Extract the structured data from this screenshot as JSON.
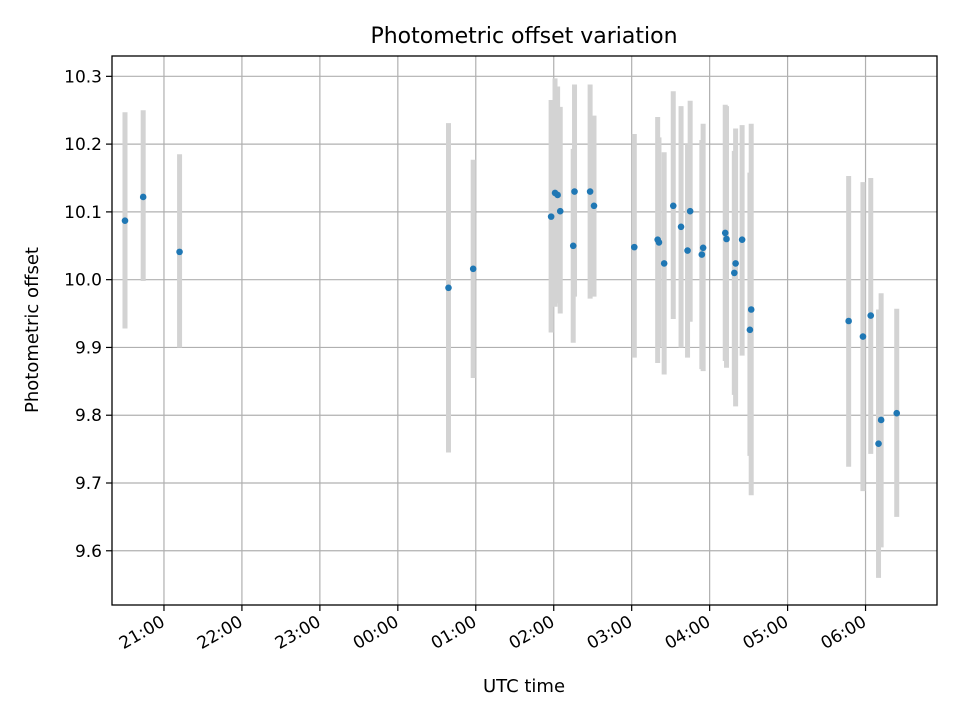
{
  "chart_data": {
    "type": "scatter",
    "title": "Photometric offset variation",
    "xlabel": "UTC time",
    "ylabel": "Photometric offset",
    "grid": true,
    "x_axis": {
      "kind": "time",
      "range": [
        "20:20",
        "06:55"
      ],
      "ticks": [
        "21:00",
        "22:00",
        "23:00",
        "00:00",
        "01:00",
        "02:00",
        "03:00",
        "04:00",
        "05:00",
        "06:00"
      ]
    },
    "y_axis": {
      "range": [
        9.52,
        10.33
      ],
      "ticks": [
        9.6,
        9.7,
        9.8,
        9.9,
        10.0,
        10.1,
        10.2,
        10.3
      ]
    },
    "colors": {
      "point": "#1f77b4",
      "errorbar": "#d3d3d3"
    },
    "points": [
      {
        "t": "20:30",
        "y": 10.087,
        "lo": 9.928,
        "hi": 10.247
      },
      {
        "t": "20:44",
        "y": 10.122,
        "lo": 9.998,
        "hi": 10.25
      },
      {
        "t": "21:12",
        "y": 10.041,
        "lo": 9.9,
        "hi": 10.185
      },
      {
        "t": "00:39",
        "y": 9.988,
        "lo": 9.745,
        "hi": 10.231
      },
      {
        "t": "00:58",
        "y": 10.016,
        "lo": 9.855,
        "hi": 10.177
      },
      {
        "t": "01:58",
        "y": 10.093,
        "lo": 9.922,
        "hi": 10.265
      },
      {
        "t": "02:01",
        "y": 10.128,
        "lo": 9.96,
        "hi": 10.297
      },
      {
        "t": "02:03",
        "y": 10.125,
        "lo": 9.965,
        "hi": 10.285
      },
      {
        "t": "02:05",
        "y": 10.101,
        "lo": 9.95,
        "hi": 10.255
      },
      {
        "t": "02:15",
        "y": 10.05,
        "lo": 9.907,
        "hi": 10.193
      },
      {
        "t": "02:16",
        "y": 10.13,
        "lo": 9.975,
        "hi": 10.288
      },
      {
        "t": "02:28",
        "y": 10.13,
        "lo": 9.972,
        "hi": 10.288
      },
      {
        "t": "02:31",
        "y": 10.109,
        "lo": 9.975,
        "hi": 10.242
      },
      {
        "t": "03:02",
        "y": 10.048,
        "lo": 9.885,
        "hi": 10.215
      },
      {
        "t": "03:20",
        "y": 10.059,
        "lo": 9.877,
        "hi": 10.24
      },
      {
        "t": "03:21",
        "y": 10.055,
        "lo": 9.9,
        "hi": 10.21
      },
      {
        "t": "03:25",
        "y": 10.024,
        "lo": 9.86,
        "hi": 10.188
      },
      {
        "t": "03:32",
        "y": 10.109,
        "lo": 9.942,
        "hi": 10.278
      },
      {
        "t": "03:38",
        "y": 10.078,
        "lo": 9.9,
        "hi": 10.256
      },
      {
        "t": "03:43",
        "y": 10.043,
        "lo": 9.885,
        "hi": 10.2
      },
      {
        "t": "03:45",
        "y": 10.101,
        "lo": 9.938,
        "hi": 10.264
      },
      {
        "t": "03:54",
        "y": 10.037,
        "lo": 9.868,
        "hi": 10.206
      },
      {
        "t": "03:55",
        "y": 10.047,
        "lo": 9.865,
        "hi": 10.23
      },
      {
        "t": "04:12",
        "y": 10.069,
        "lo": 9.88,
        "hi": 10.258
      },
      {
        "t": "04:13",
        "y": 10.06,
        "lo": 9.87,
        "hi": 10.256
      },
      {
        "t": "04:19",
        "y": 10.01,
        "lo": 9.83,
        "hi": 10.19
      },
      {
        "t": "04:20",
        "y": 10.024,
        "lo": 9.813,
        "hi": 10.223
      },
      {
        "t": "04:25",
        "y": 10.059,
        "lo": 9.888,
        "hi": 10.228
      },
      {
        "t": "04:31",
        "y": 9.926,
        "lo": 9.74,
        "hi": 10.158
      },
      {
        "t": "04:32",
        "y": 9.956,
        "lo": 9.682,
        "hi": 10.23
      },
      {
        "t": "05:47",
        "y": 9.939,
        "lo": 9.724,
        "hi": 10.153
      },
      {
        "t": "05:58",
        "y": 9.916,
        "lo": 9.688,
        "hi": 10.144
      },
      {
        "t": "06:04",
        "y": 9.947,
        "lo": 9.743,
        "hi": 10.15
      },
      {
        "t": "06:10",
        "y": 9.758,
        "lo": 9.56,
        "hi": 9.956
      },
      {
        "t": "06:12",
        "y": 9.793,
        "lo": 9.605,
        "hi": 9.98
      },
      {
        "t": "06:24",
        "y": 9.803,
        "lo": 9.65,
        "hi": 9.957
      }
    ]
  }
}
